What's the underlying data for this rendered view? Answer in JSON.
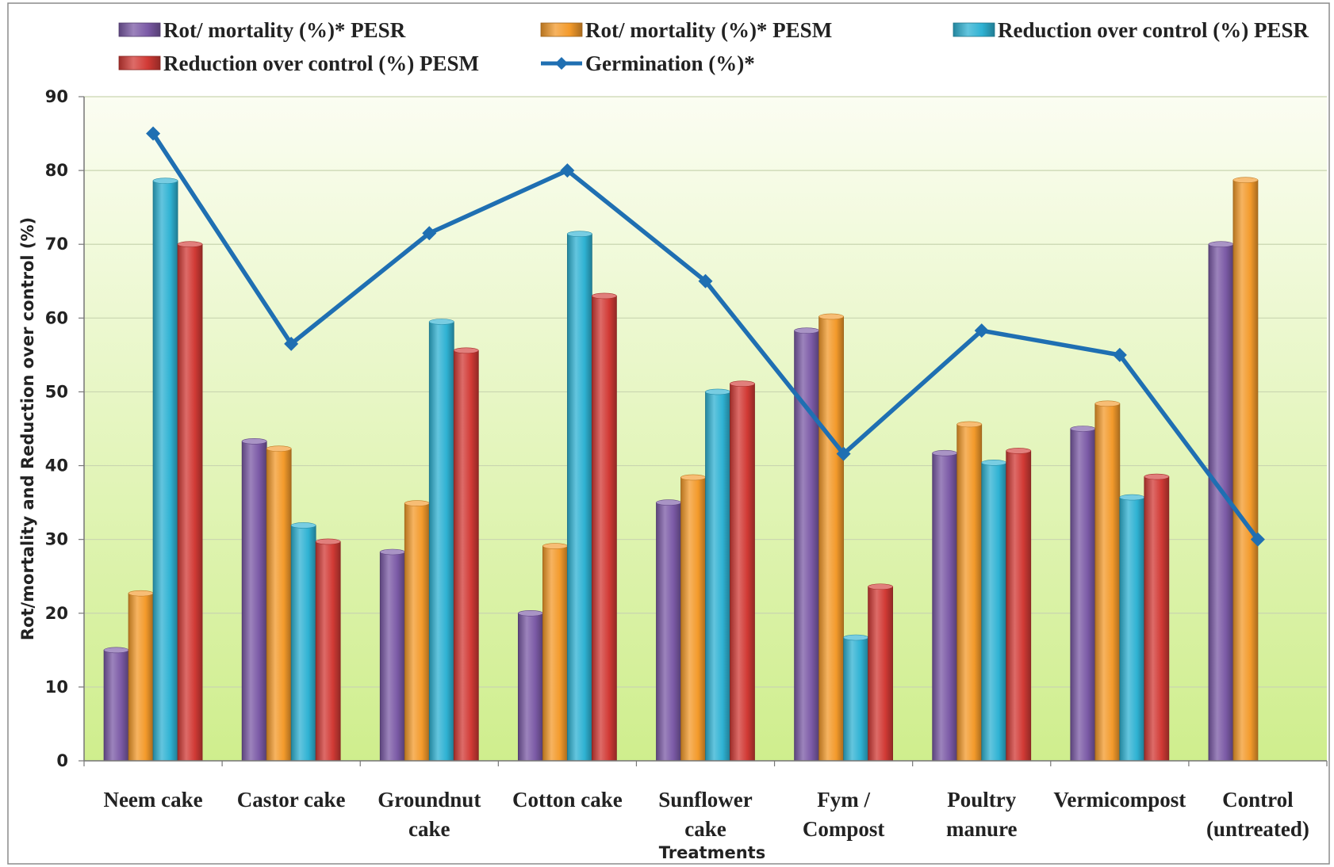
{
  "chart_data": {
    "type": "bar",
    "xlabel": "Treatments",
    "ylabel": "Rot/mortality and Reduction over control (%)",
    "ylim": [
      0,
      90
    ],
    "yticks": [
      0,
      10,
      20,
      30,
      40,
      50,
      60,
      70,
      80,
      90
    ],
    "grid": true,
    "legend_position": "top",
    "categories": [
      [
        "Neem cake"
      ],
      [
        "Castor cake"
      ],
      [
        "Groundnut",
        "cake"
      ],
      [
        "Cotton cake"
      ],
      [
        "Sunflower",
        "cake"
      ],
      [
        "Fym /",
        "Compost"
      ],
      [
        "Poultry",
        "manure"
      ],
      [
        "Vermicompost"
      ],
      [
        "Control",
        "(untreated)"
      ]
    ],
    "series": [
      {
        "name": "Rot/ mortality (%)* PESR",
        "color": "#7b5aa6",
        "values": [
          15,
          43.3,
          28.3,
          20,
          35,
          58.3,
          41.7,
          45,
          70
        ]
      },
      {
        "name": "Rot/ mortality (%)* PESM",
        "color": "#f39a2b",
        "values": [
          22.7,
          42.3,
          34.9,
          29.1,
          38.4,
          60.2,
          45.6,
          48.4,
          78.7
        ]
      },
      {
        "name": "Reduction over control (%) PESR",
        "color": "#2fb2d3",
        "values": [
          78.6,
          31.9,
          59.5,
          71.4,
          50,
          16.7,
          40.4,
          35.7,
          null
        ]
      },
      {
        "name": "Reduction over control (%) PESM",
        "color": "#d13a35",
        "values": [
          70,
          29.7,
          55.6,
          63,
          51.1,
          23.6,
          42,
          38.5,
          null
        ]
      }
    ],
    "line_series": {
      "name": "Germination (%)*",
      "color": "#1f6fb2",
      "values": [
        85,
        56.5,
        71.5,
        80,
        65,
        41.6,
        58.3,
        55,
        30
      ]
    }
  }
}
